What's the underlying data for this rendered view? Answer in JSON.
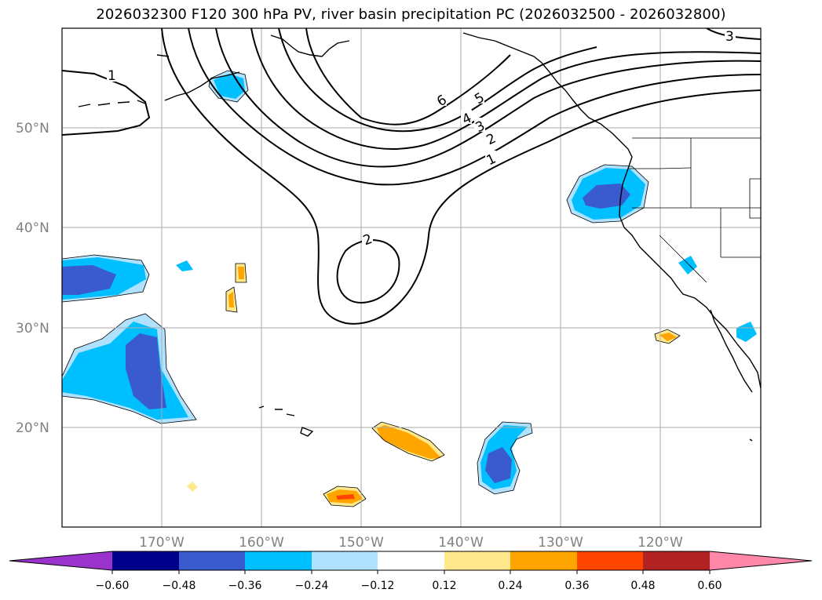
{
  "title": "2026032300 F120 300 hPa PV, river basin precipitation PC (2026032500 - 2026032800)",
  "map": {
    "lon_range": [
      -180,
      -110
    ],
    "lat_range": [
      10,
      60
    ],
    "lat_labels": [
      "50°N",
      "40°N",
      "30°N",
      "20°N"
    ],
    "lat_values": [
      50,
      40,
      30,
      20
    ],
    "lon_labels": [
      "170°W",
      "160°W",
      "150°W",
      "140°W",
      "130°W",
      "120°W"
    ],
    "lon_values": [
      -170,
      -160,
      -150,
      -140,
      -130,
      -120
    ],
    "pv_contour_labels": [
      "1",
      "1",
      "2",
      "3",
      "4",
      "5",
      "6",
      "2",
      "3"
    ]
  },
  "colorbar": {
    "ticks": [
      "−0.60",
      "−0.48",
      "−0.36",
      "−0.24",
      "−0.12",
      "0.12",
      "0.24",
      "0.36",
      "0.48",
      "0.60"
    ],
    "colors": [
      "#9933cc",
      "#00008b",
      "#3a5bcd",
      "#00bfff",
      "#b0e2ff",
      "#ffffff",
      "#ffe98c",
      "#ffa500",
      "#ff4500",
      "#b22222",
      "#ff88aa"
    ]
  }
}
